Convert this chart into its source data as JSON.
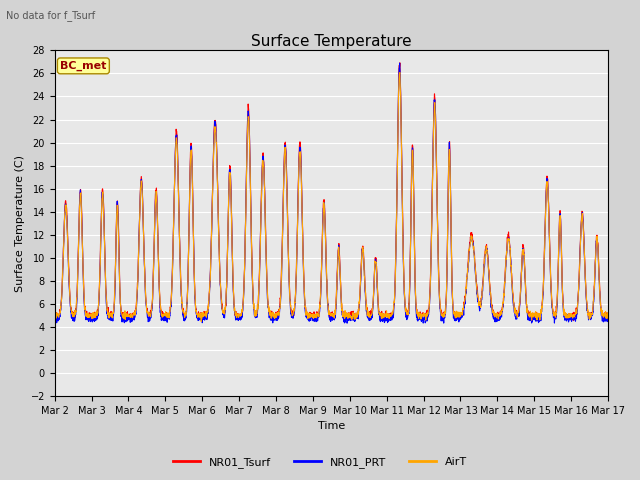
{
  "title": "Surface Temperature",
  "subtitle": "No data for f_Tsurf",
  "ylabel": "Surface Temperature (C)",
  "xlabel": "Time",
  "annotation": "BC_met",
  "ylim": [
    -2,
    28
  ],
  "yticks": [
    -2,
    0,
    2,
    4,
    6,
    8,
    10,
    12,
    14,
    16,
    18,
    20,
    22,
    24,
    26,
    28
  ],
  "xtick_labels": [
    "Mar 2",
    "Mar 3",
    "Mar 4",
    "Mar 5",
    "Mar 6",
    "Mar 7",
    "Mar 8",
    "Mar 9",
    "Mar 10",
    "Mar 11",
    "Mar 12",
    "Mar 13",
    "Mar 14",
    "Mar 15",
    "Mar 16",
    "Mar 17"
  ],
  "n_days": 15,
  "series_colors": {
    "NR01_Tsurf": "#FF0000",
    "NR01_PRT": "#0000FF",
    "AirT": "#FFA500"
  },
  "series_lw": 0.8,
  "bg_color": "#D3D3D3",
  "plot_bg": "#E8E8E8",
  "grid_color": "#FFFFFF",
  "legend_entries": [
    "NR01_Tsurf",
    "NR01_PRT",
    "AirT"
  ],
  "legend_colors": [
    "#FF0000",
    "#0000FF",
    "#FFA500"
  ],
  "title_fontsize": 11,
  "tick_fontsize": 7,
  "label_fontsize": 8,
  "anno_fontsize": 8
}
